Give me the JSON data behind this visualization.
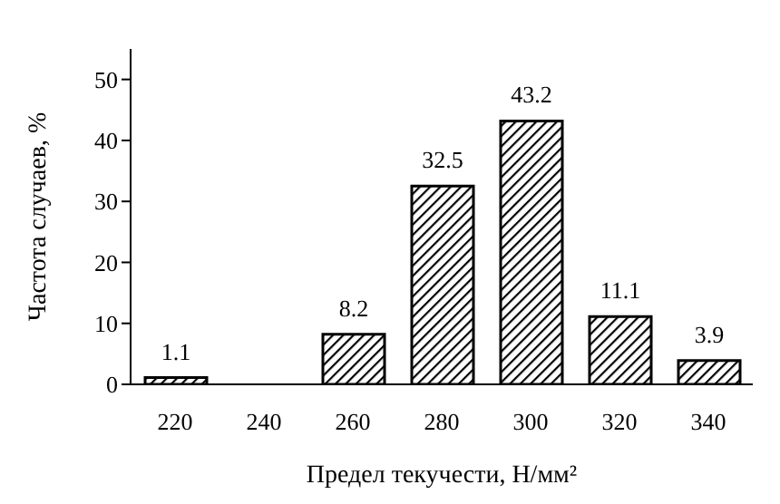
{
  "chart_data": {
    "type": "bar",
    "xlabel": "Предел текучести, Н/мм²",
    "ylabel": "Частота случаев, %",
    "categories": [
      "220",
      "240",
      "260",
      "280",
      "300",
      "320",
      "340"
    ],
    "values": [
      1.1,
      null,
      8.2,
      32.5,
      43.2,
      11.1,
      3.9
    ],
    "color": "#000000",
    "ylim": [
      0,
      55
    ],
    "yticks": [
      0,
      10,
      20,
      30,
      40,
      50
    ],
    "grid": false,
    "data_labels": true
  }
}
